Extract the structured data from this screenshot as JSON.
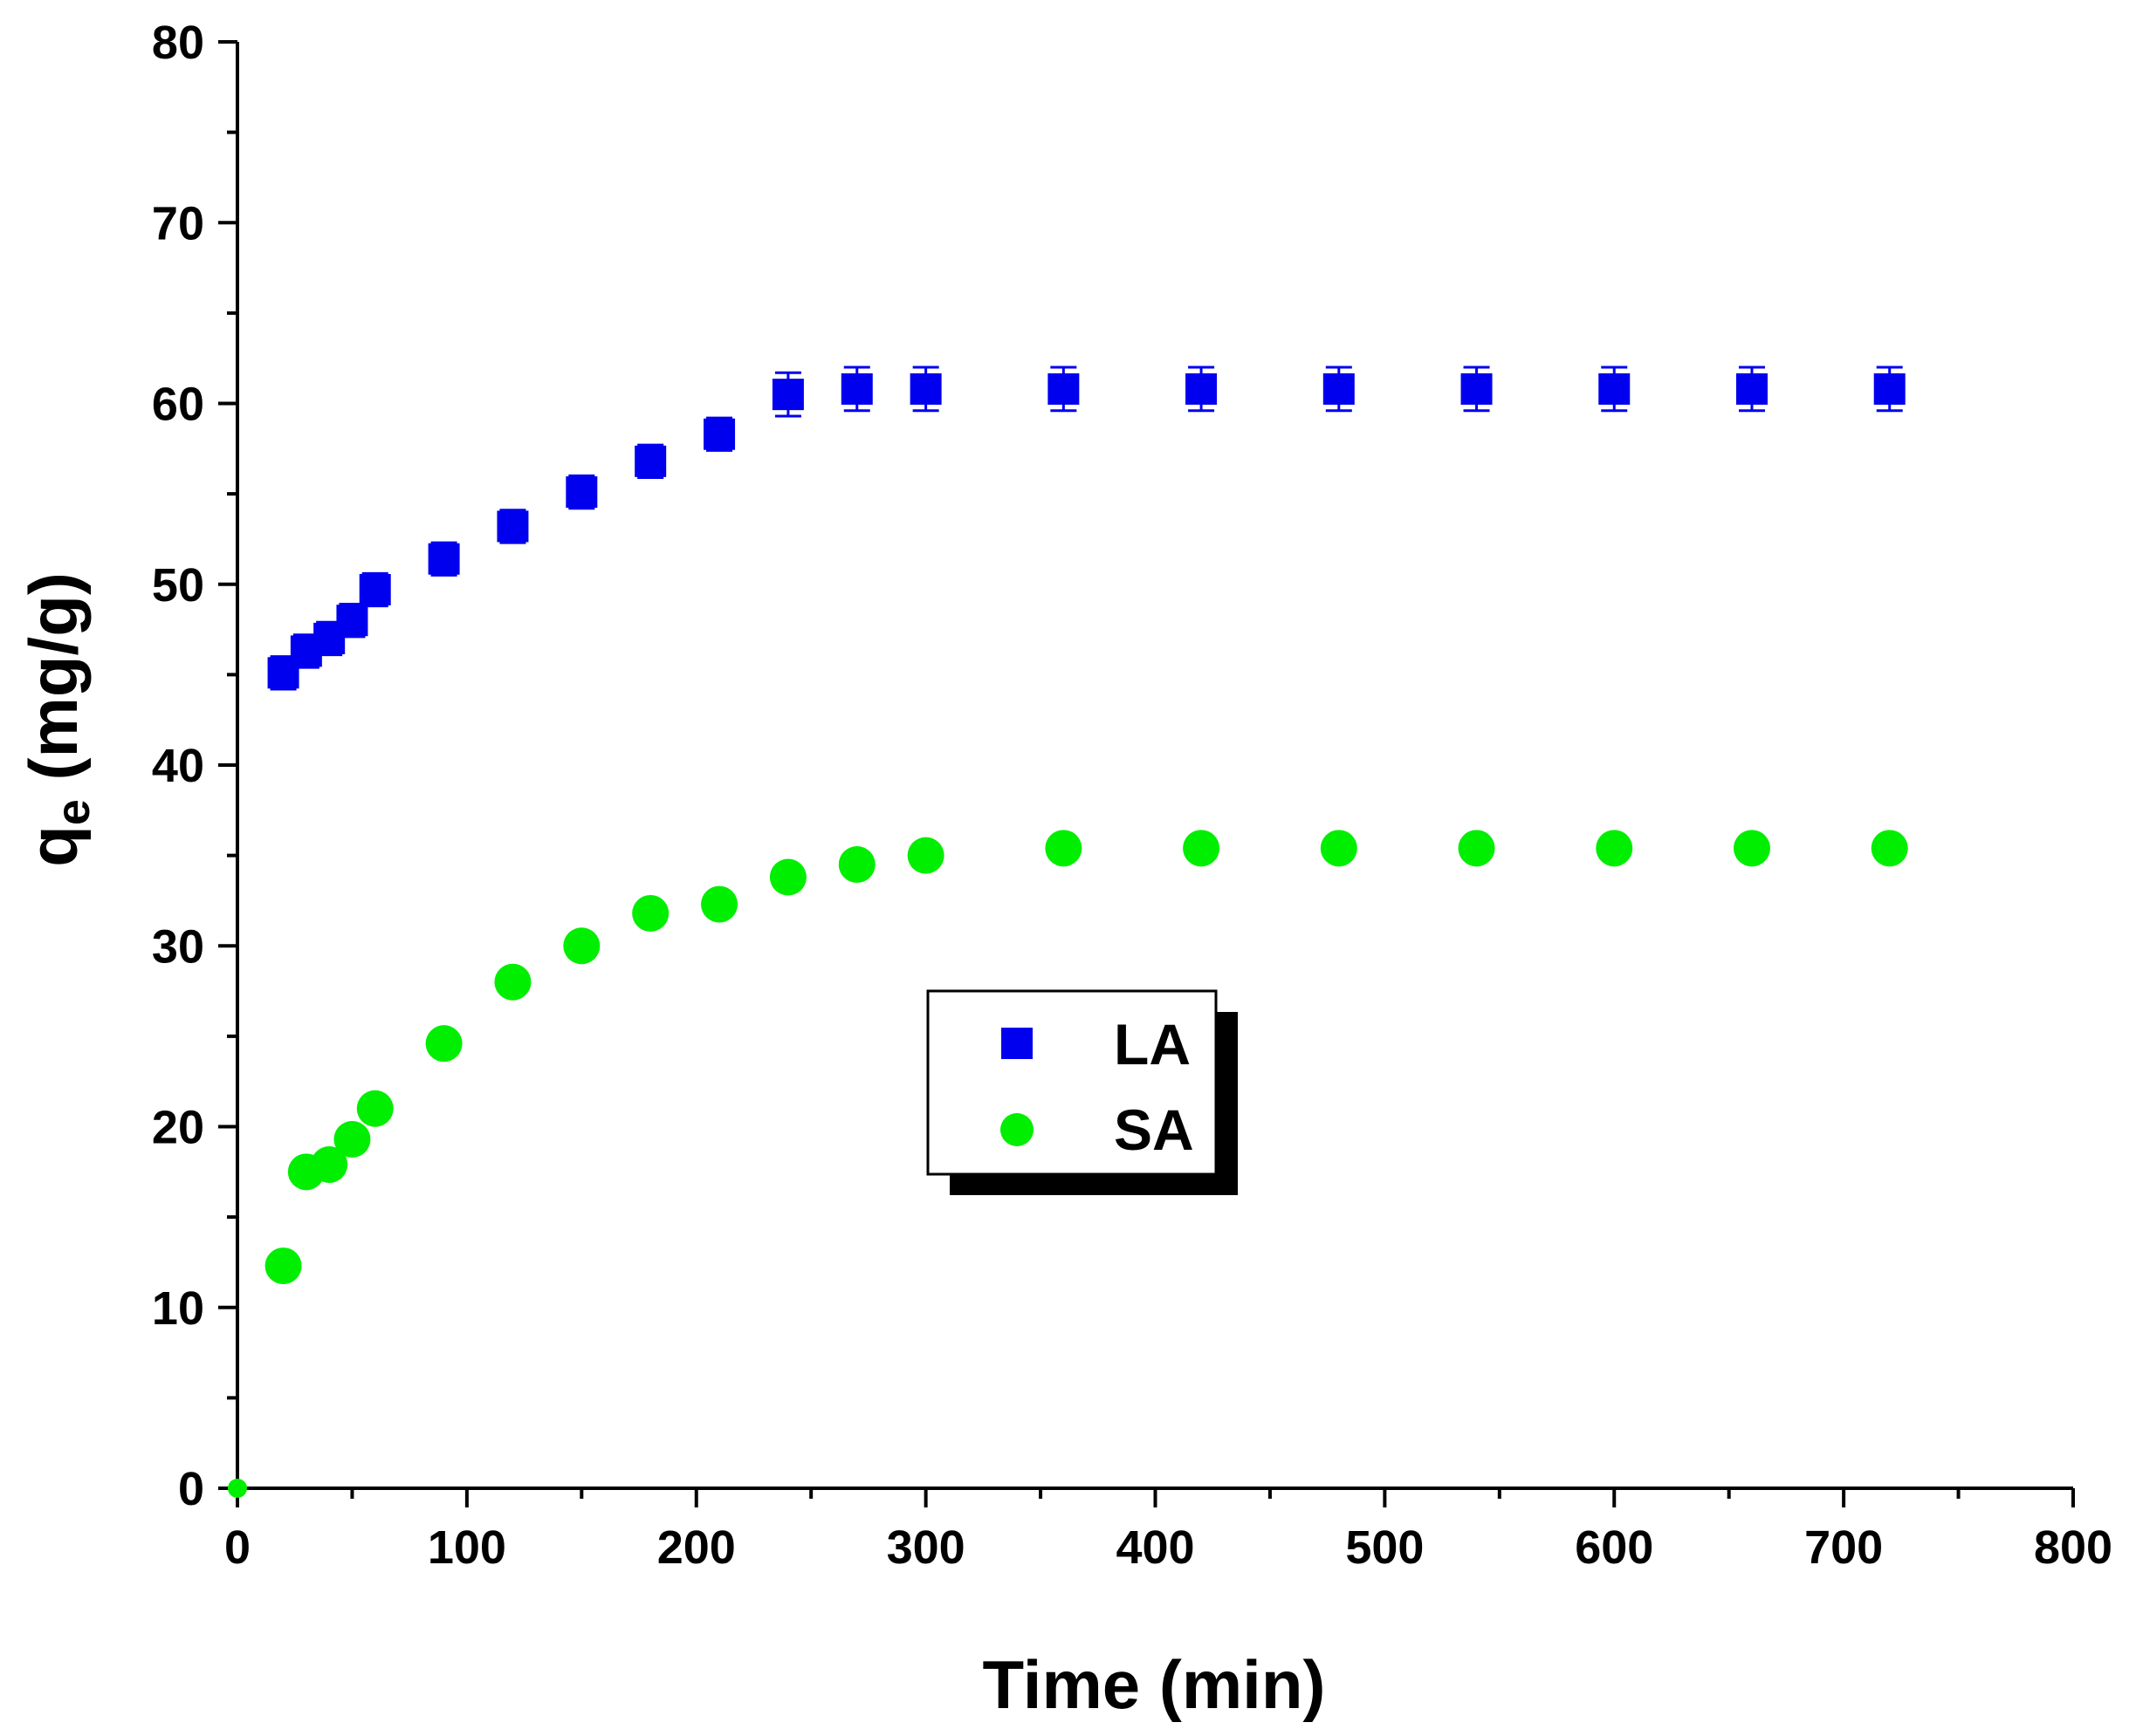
{
  "chart_data": {
    "type": "scatter",
    "title": "",
    "xlabel": "Time (min)",
    "ylabel_main": "q",
    "ylabel_sub": "e",
    "ylabel_unit": " (mg/g)",
    "xlim": [
      0,
      800
    ],
    "ylim": [
      0,
      80
    ],
    "x_major_ticks": [
      0,
      100,
      200,
      300,
      400,
      500,
      600,
      700,
      800
    ],
    "y_major_ticks": [
      0,
      10,
      20,
      30,
      40,
      50,
      60,
      70,
      80
    ],
    "x_tick_labels": [
      "0",
      "100",
      "200",
      "300",
      "400",
      "500",
      "600",
      "700",
      "800"
    ],
    "y_tick_labels": [
      "0",
      "10",
      "20",
      "30",
      "40",
      "50",
      "60",
      "70",
      "80"
    ],
    "grid": false,
    "legend_position": "center",
    "series": [
      {
        "name": "LA",
        "marker": "square",
        "color": "#0000ee",
        "x": [
          20,
          30,
          40,
          50,
          60,
          90,
          120,
          150,
          180,
          210,
          240,
          270,
          300,
          360,
          420,
          480,
          540,
          600,
          660,
          720
        ],
        "y": [
          45.1,
          46.3,
          47.0,
          48.0,
          49.7,
          51.4,
          53.2,
          55.1,
          56.8,
          58.3,
          60.5,
          60.8,
          60.8,
          60.8,
          60.8,
          60.8,
          60.8,
          60.8,
          60.8,
          60.8
        ],
        "err": [
          0.9,
          0.9,
          0.9,
          0.9,
          0.9,
          0.9,
          0.9,
          0.9,
          0.9,
          0.9,
          1.2,
          1.2,
          1.2,
          1.2,
          1.2,
          1.2,
          1.2,
          1.2,
          1.2,
          1.2
        ]
      },
      {
        "name": "SA",
        "marker": "circle",
        "color": "#00ee00",
        "x": [
          0,
          20,
          30,
          40,
          50,
          60,
          90,
          120,
          150,
          180,
          210,
          240,
          270,
          300,
          360,
          420,
          480,
          540,
          600,
          660,
          720
        ],
        "y": [
          0,
          12.3,
          17.5,
          17.9,
          19.3,
          21.0,
          24.6,
          28.0,
          30.0,
          31.8,
          32.3,
          33.8,
          34.5,
          35.0,
          35.4,
          35.4,
          35.4,
          35.4,
          35.4,
          35.4,
          35.4
        ]
      }
    ]
  }
}
